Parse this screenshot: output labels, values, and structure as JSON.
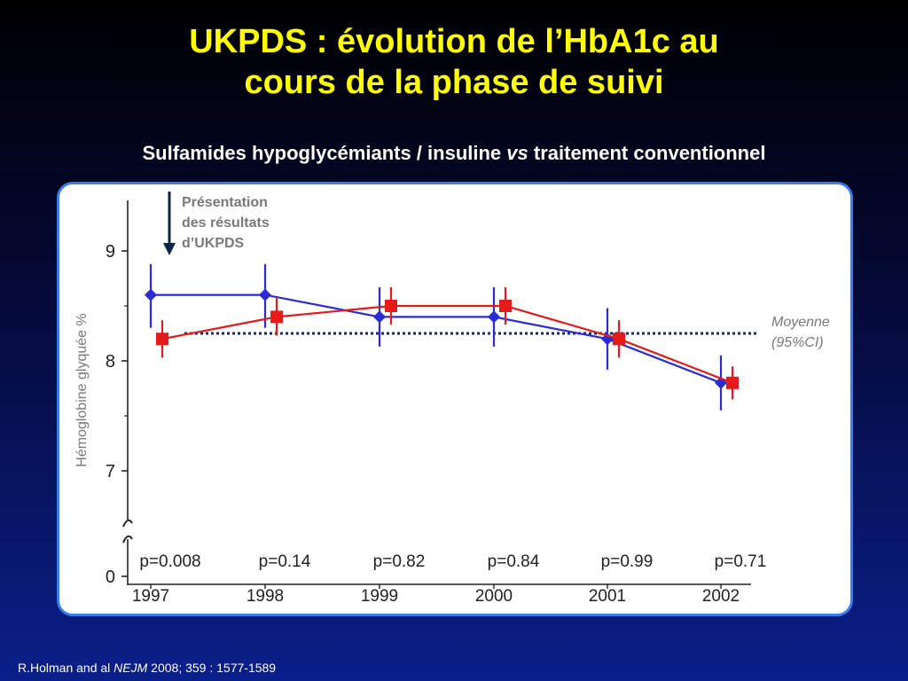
{
  "slide": {
    "title_line1": "UKPDS : évolution de l’HbA1c au",
    "title_line2": "cours de la phase de suivi",
    "subtitle_before": "Sulfamides hypoglycémiants / insuline ",
    "subtitle_vs": "vs",
    "subtitle_after": " traitement conventionnel",
    "citation_before": "R.Holman and al ",
    "citation_journal": "NEJM",
    "citation_after": " 2008; 359 : 1577-1589"
  },
  "chart_data": {
    "type": "line",
    "title": "",
    "xlabel": "",
    "ylabel": "Hémoglobine glyquée %",
    "categories": [
      "1997",
      "1998",
      "1999",
      "2000",
      "2001",
      "2002"
    ],
    "yticks": [
      "0",
      "7",
      "8",
      "9"
    ],
    "ylim": [
      6.5,
      9.5
    ],
    "axis_break": true,
    "colors": {
      "blue": "#2b2bd6",
      "red": "#e51a1a",
      "mean_line": "#1f2a5a",
      "arrow": "#0d2647",
      "annotation": "#7a7a7a"
    },
    "series": [
      {
        "values": [
          8.6,
          8.6,
          8.4,
          8.4,
          8.2,
          7.8
        ],
        "ci_low": [
          8.3,
          8.3,
          8.13,
          8.13,
          7.92,
          7.55
        ],
        "ci_high": [
          8.88,
          8.88,
          8.67,
          8.67,
          8.48,
          8.05
        ],
        "marker": "diamond"
      },
      {
        "values": [
          8.2,
          8.4,
          8.5,
          8.5,
          8.2,
          7.8
        ],
        "ci_low": [
          8.03,
          8.23,
          8.33,
          8.33,
          8.03,
          7.65
        ],
        "ci_high": [
          8.37,
          8.57,
          8.67,
          8.67,
          8.37,
          7.95
        ],
        "marker": "square"
      }
    ],
    "mean_line": {
      "value": 8.25,
      "label_line1": "Moyenne",
      "label_line2": "(95%CI)"
    },
    "pvalues": [
      "p=0.008",
      "p=0.14",
      "p=0.82",
      "p=0.84",
      "p=0.99",
      "p=0.71"
    ],
    "annotation": {
      "line1": "Présentation",
      "line2": "des résultats",
      "line3": "d’UKPDS"
    }
  }
}
